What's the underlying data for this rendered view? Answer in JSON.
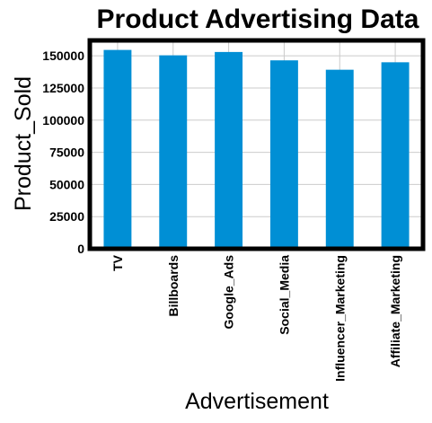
{
  "chart_data": {
    "type": "bar",
    "title": "Product Advertising Data",
    "xlabel": "Advertisement",
    "ylabel": "Product_Sold",
    "categories": [
      "TV",
      "Billboards",
      "Google_Ads",
      "Social_Media",
      "Influencer_Marketing",
      "Affiliate_Marketing"
    ],
    "values": [
      154600,
      150400,
      153000,
      146500,
      139200,
      145000
    ],
    "ylim": [
      0,
      162000
    ],
    "yticks": [
      0,
      25000,
      50000,
      75000,
      100000,
      125000,
      150000
    ],
    "grid": true,
    "legend": "none",
    "colors": {
      "bar": "#008fd5",
      "grid": "#cbcbcb",
      "frame": "#000000",
      "background": "#ffffff"
    }
  }
}
